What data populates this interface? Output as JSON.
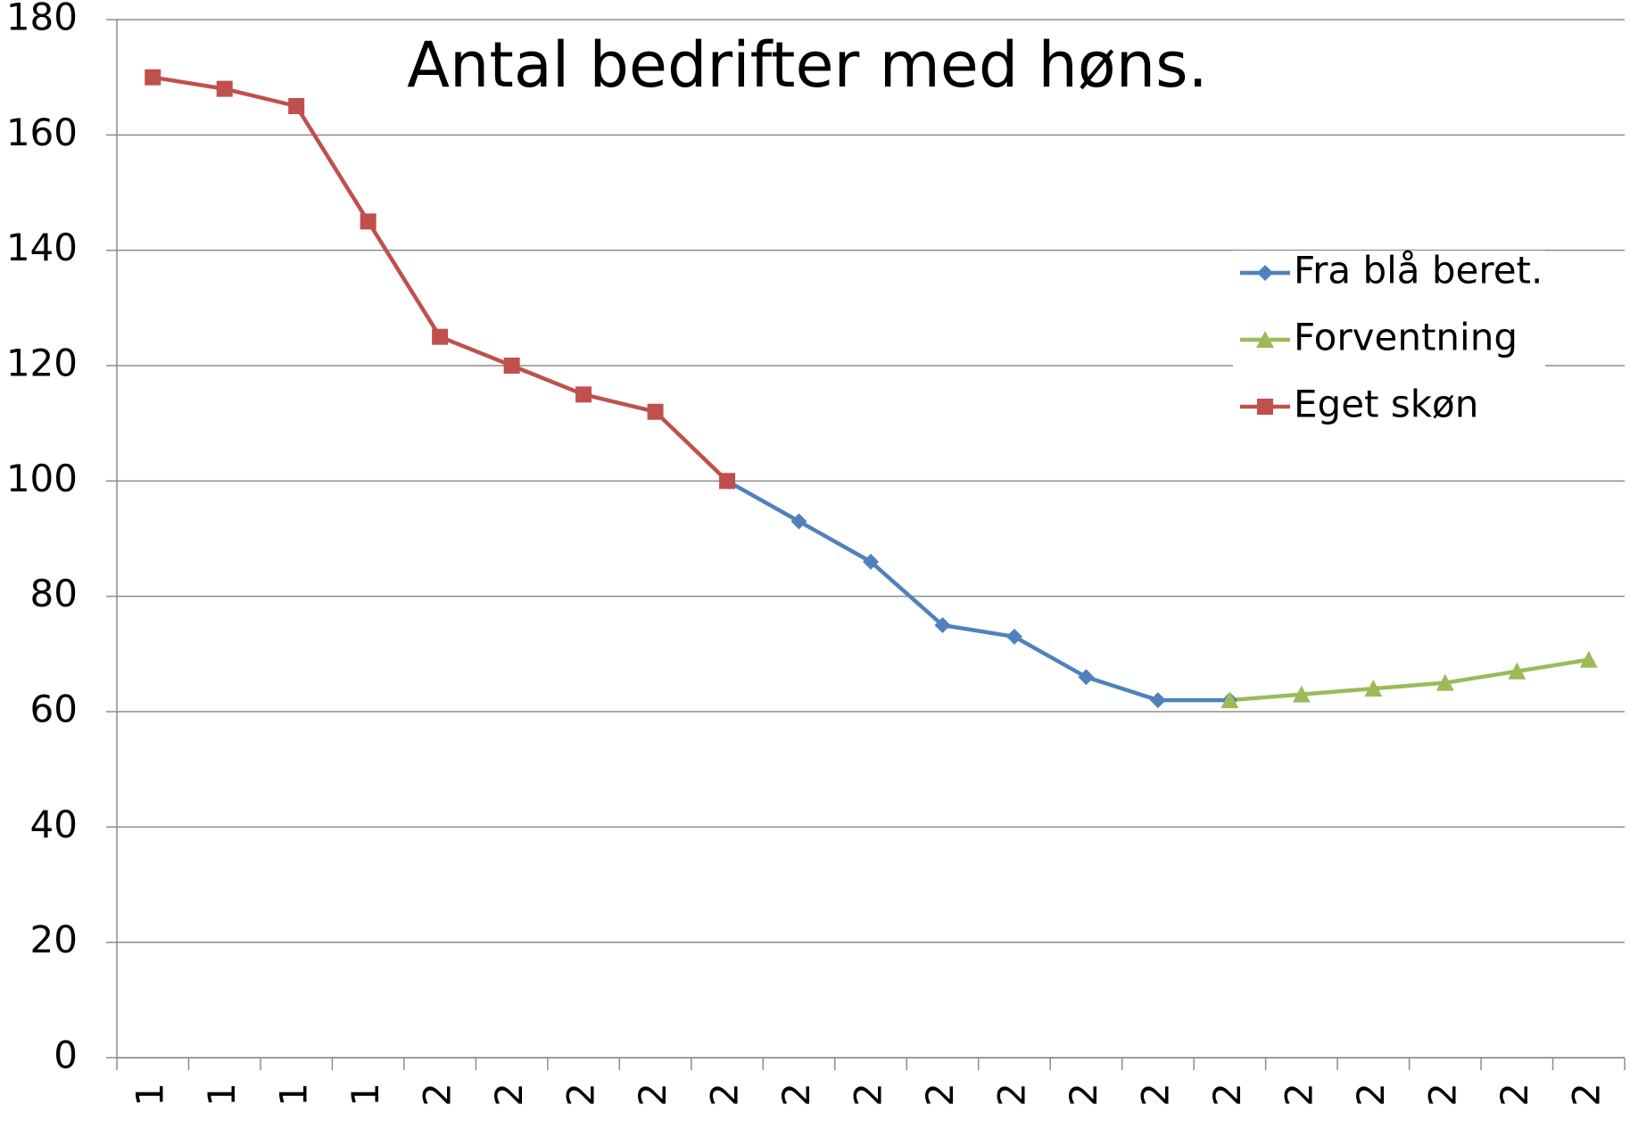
{
  "chart_data": {
    "type": "line",
    "title": "Antal bedrifter med høns.",
    "categories": [
      "1",
      "1",
      "1",
      "1",
      "2",
      "2",
      "2",
      "2",
      "2",
      "2",
      "2",
      "2",
      "2",
      "2",
      "2",
      "2",
      "2",
      "2",
      "2",
      "2",
      "2"
    ],
    "series": [
      {
        "name": "Fra blå beret.",
        "color": "#4f81bd",
        "marker": "diamond",
        "values": [
          null,
          null,
          null,
          null,
          null,
          null,
          null,
          null,
          100,
          93,
          86,
          75,
          73,
          66,
          62,
          62,
          null,
          null,
          null,
          null,
          null
        ]
      },
      {
        "name": "Forventning",
        "color": "#9bbb59",
        "marker": "triangle",
        "values": [
          null,
          null,
          null,
          null,
          null,
          null,
          null,
          null,
          null,
          null,
          null,
          null,
          null,
          null,
          null,
          62,
          63,
          64,
          65,
          67,
          69
        ]
      },
      {
        "name": "Eget skøn",
        "color": "#c0504d",
        "marker": "square",
        "values": [
          170,
          168,
          165,
          145,
          125,
          120,
          115,
          112,
          100,
          null,
          null,
          null,
          null,
          null,
          null,
          null,
          null,
          null,
          null,
          null,
          null
        ]
      }
    ],
    "ylim": [
      0,
      180
    ],
    "yticks": [
      0,
      20,
      40,
      60,
      80,
      100,
      120,
      140,
      160,
      180
    ],
    "grid": true,
    "legend": "right"
  }
}
